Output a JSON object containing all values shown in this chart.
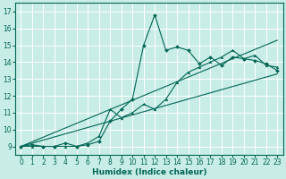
{
  "xlabel": "Humidex (Indice chaleur)",
  "bg_color": "#c8ece6",
  "grid_color": "#ffffff",
  "line_color": "#006655",
  "xlim": [
    -0.5,
    23.5
  ],
  "ylim": [
    8.5,
    17.5
  ],
  "xticks": [
    0,
    1,
    2,
    3,
    4,
    5,
    6,
    7,
    8,
    9,
    10,
    11,
    12,
    13,
    14,
    15,
    16,
    17,
    18,
    19,
    20,
    21,
    22,
    23
  ],
  "yticks": [
    9,
    10,
    11,
    12,
    13,
    14,
    15,
    16,
    17
  ],
  "line1_x": [
    0,
    1,
    2,
    3,
    4,
    5,
    6,
    7,
    8,
    9,
    10,
    11,
    12,
    13,
    14,
    15,
    16,
    17,
    18,
    19,
    20,
    21,
    22,
    23
  ],
  "line1_y": [
    9.0,
    9.1,
    9.0,
    9.0,
    9.2,
    9.0,
    9.1,
    9.3,
    10.5,
    11.2,
    11.8,
    15.0,
    16.8,
    14.7,
    14.9,
    14.7,
    13.9,
    14.3,
    13.8,
    14.3,
    14.2,
    14.1,
    13.9,
    13.5
  ],
  "line2_x": [
    0,
    1,
    2,
    3,
    4,
    5,
    6,
    7,
    8,
    9,
    10,
    11,
    12,
    13,
    14,
    15,
    16,
    17,
    18,
    19,
    20,
    21,
    22,
    23
  ],
  "line2_y": [
    9.0,
    9.0,
    9.0,
    9.0,
    9.0,
    9.0,
    9.2,
    9.6,
    11.2,
    10.7,
    11.0,
    11.5,
    11.2,
    11.8,
    12.8,
    13.4,
    13.7,
    14.0,
    14.3,
    14.7,
    14.2,
    14.4,
    13.8,
    13.7
  ],
  "ref_line1": [
    [
      0,
      23
    ],
    [
      9.0,
      15.3
    ]
  ],
  "ref_line2": [
    [
      0,
      23
    ],
    [
      9.0,
      13.3
    ]
  ],
  "xlabel_fontsize": 6.5,
  "tick_fontsize": 5.5
}
